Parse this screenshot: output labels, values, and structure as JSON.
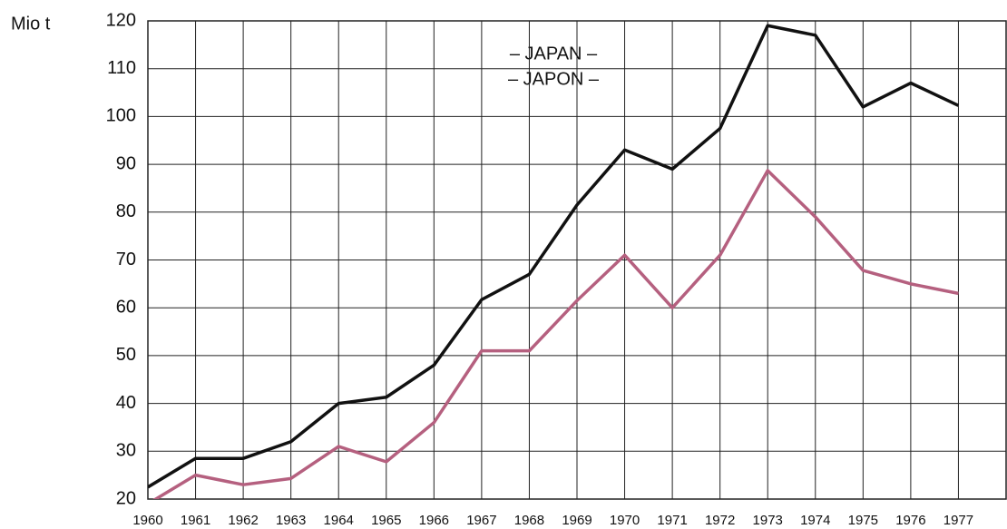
{
  "chart_data": {
    "type": "line",
    "title": "– JAPAN –",
    "subtitle": "– JAPON –",
    "y_label": "Mio t",
    "x": [
      1960,
      1961,
      1962,
      1963,
      1964,
      1965,
      1966,
      1967,
      1968,
      1969,
      1970,
      1971,
      1972,
      1973,
      1974,
      1975,
      1976,
      1977
    ],
    "series": [
      {
        "color": "#111111",
        "values": [
          22.5,
          28.5,
          28.5,
          32,
          40,
          41.3,
          48,
          61.7,
          67,
          81.5,
          93,
          89,
          97.5,
          119,
          117,
          102,
          107,
          102.3
        ]
      },
      {
        "color": "#b5607f",
        "values": [
          19,
          25,
          23,
          24.3,
          31,
          27.8,
          36,
          51,
          51,
          61.5,
          71,
          60,
          71,
          88.7,
          79,
          67.8,
          65,
          63
        ]
      }
    ],
    "xlim": [
      1960,
      1978
    ],
    "xticks": [
      1960,
      1961,
      1962,
      1963,
      1964,
      1965,
      1966,
      1967,
      1968,
      1969,
      1970,
      1971,
      1972,
      1973,
      1974,
      1975,
      1976,
      1977
    ],
    "ylim": [
      20,
      120
    ],
    "yticks": [
      20,
      30,
      40,
      50,
      60,
      70,
      80,
      90,
      100,
      110,
      120
    ],
    "grid": true
  }
}
